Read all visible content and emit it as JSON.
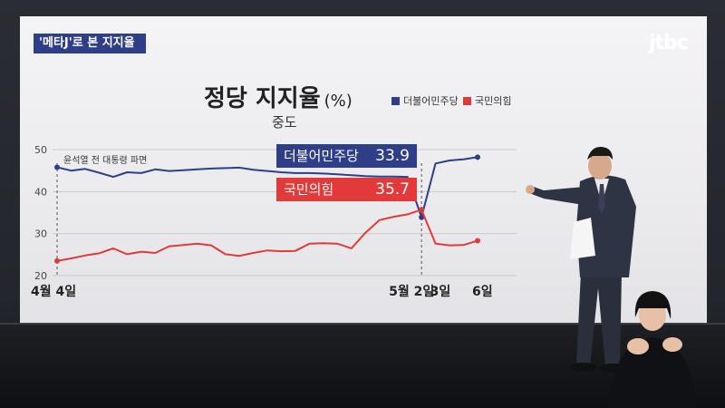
{
  "broadcast": {
    "segment_tag": "'메타J'로 본 지지율",
    "logo": "jtbc"
  },
  "colors": {
    "blue": "#2f3e88",
    "red": "#e23a3a",
    "tag_bg": "#2f3e88"
  },
  "chart_data": {
    "type": "line",
    "title": "정당 지지율",
    "unit": "(%)",
    "subtitle": "중도",
    "ylim": [
      20,
      50
    ],
    "yticks": [
      20,
      30,
      40,
      50
    ],
    "x_labels": [
      "4월 4일",
      "5월 2일",
      "3일",
      "6일"
    ],
    "annotation": "윤석열 전 대통령 파면",
    "series": [
      {
        "name": "더불어민주당",
        "color": "#2f3e88",
        "values": [
          45.8,
          45.0,
          45.4,
          44.5,
          43.5,
          44.6,
          44.4,
          45.3,
          44.9,
          45.1,
          45.3,
          45.5,
          45.6,
          45.7,
          45.2,
          44.9,
          44.6,
          44.4,
          44.4,
          44.3,
          44.1,
          43.9,
          43.7,
          43.6,
          43.6,
          43.5,
          33.9,
          46.7,
          47.4,
          47.7,
          48.2
        ]
      },
      {
        "name": "국민의힘",
        "color": "#e23a3a",
        "values": [
          23.5,
          24.1,
          24.8,
          25.3,
          26.5,
          25.1,
          25.7,
          25.4,
          27.0,
          27.3,
          27.6,
          27.2,
          25.1,
          24.7,
          25.4,
          26.0,
          25.8,
          25.9,
          27.6,
          27.7,
          27.6,
          26.5,
          30.2,
          33.2,
          34.0,
          34.6,
          35.7,
          27.6,
          27.2,
          27.3,
          28.3
        ]
      }
    ],
    "tooltip": [
      {
        "label": "더불어민주당",
        "value": "33.9"
      },
      {
        "label": "국민의힘",
        "value": "35.7"
      }
    ],
    "legend_position": "top-right",
    "grid": true
  }
}
